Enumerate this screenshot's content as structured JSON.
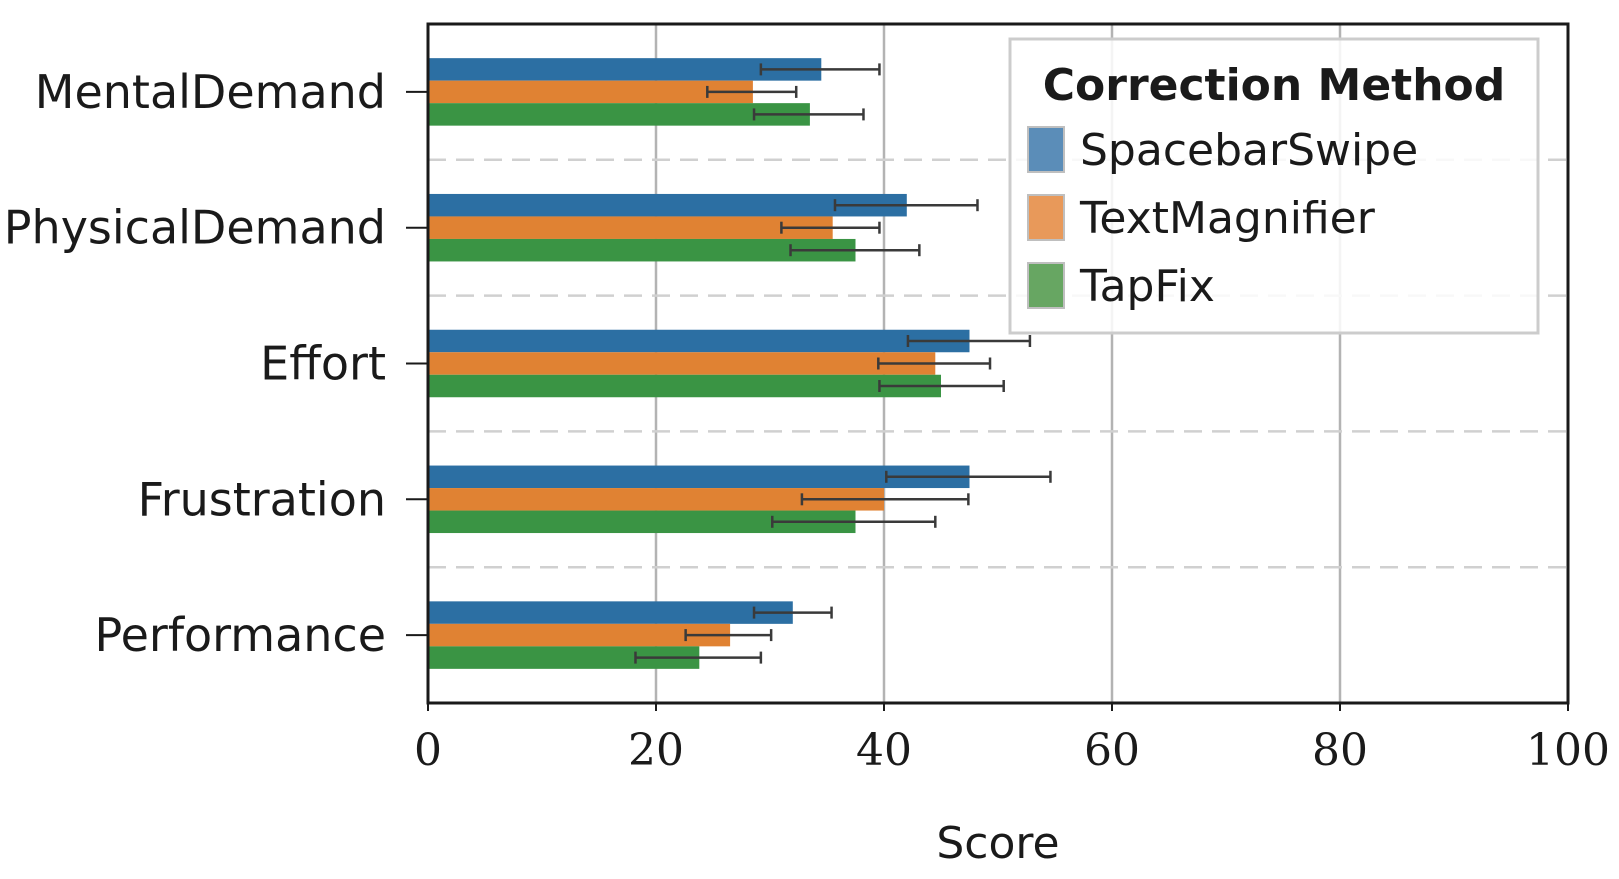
{
  "chart_data": {
    "type": "bar",
    "orientation": "horizontal",
    "categories": [
      "MentalDemand",
      "PhysicalDemand",
      "Effort",
      "Frustration",
      "Performance"
    ],
    "series": [
      {
        "name": "SpacebarSwipe",
        "color": "#2c6fa3",
        "legend_color": "#5b8db8",
        "values": [
          34.5,
          42,
          47.5,
          47.5,
          32
        ],
        "err_low": [
          29.2,
          35.7,
          42.1,
          40.2,
          28.6
        ],
        "err_high": [
          39.6,
          48.2,
          52.8,
          54.6,
          35.4
        ]
      },
      {
        "name": "TextMagnifier",
        "color": "#e08233",
        "legend_color": "#e8995a",
        "values": [
          28.5,
          35.5,
          44.5,
          40,
          26.5
        ],
        "err_low": [
          24.5,
          31,
          39.5,
          32.8,
          22.6
        ],
        "err_high": [
          32.3,
          39.6,
          49.3,
          47.4,
          30.1
        ]
      },
      {
        "name": "TapFix",
        "color": "#3a9444",
        "legend_color": "#67a662",
        "values": [
          33.5,
          37.5,
          45,
          37.5,
          23.8
        ],
        "err_low": [
          28.6,
          31.8,
          39.6,
          30.2,
          18.2
        ],
        "err_high": [
          38.2,
          43.1,
          50.5,
          44.5,
          29.2
        ]
      }
    ],
    "xlabel": "Score",
    "ylabel": "",
    "xlim": [
      0,
      100
    ],
    "xticks": [
      0,
      20,
      40,
      60,
      80,
      100
    ],
    "grid": true,
    "legend_title": "Correction Method",
    "legend_position": "top-right"
  }
}
